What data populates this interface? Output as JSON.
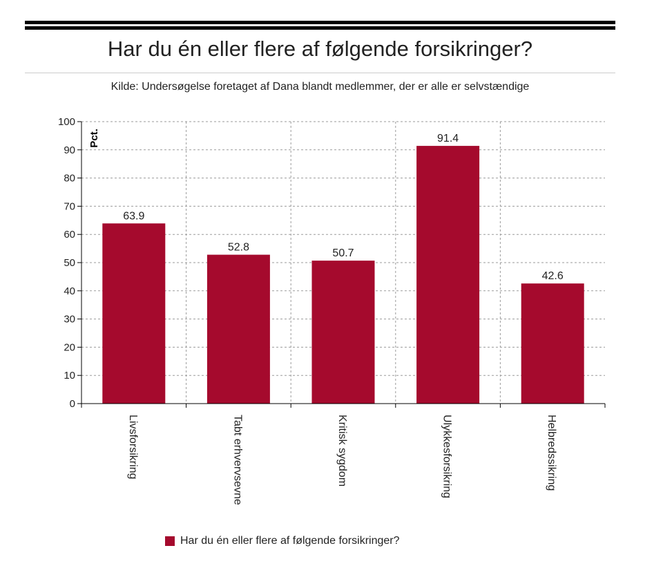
{
  "chart_data": {
    "type": "bar",
    "title": "Har du én eller flere af følgende forsikringer?",
    "subtitle": "Kilde: Undersøgelse foretaget af Dana blandt medlemmer, der er alle er selvstændige",
    "ylabel": "Pct.",
    "xlabel": "",
    "categories": [
      "Livsforsikring",
      "Tabt erhvervsevne",
      "Kritisk sygdom",
      "Ulykkesforsikring",
      "Helbredssikring"
    ],
    "series": [
      {
        "name": "Har du én eller flere af følgende forsikringer?",
        "values": [
          63.9,
          52.8,
          50.7,
          91.4,
          42.6
        ],
        "color": "#a50a2d"
      }
    ],
    "data_labels": [
      "63.9",
      "52.8",
      "50.7",
      "91.4",
      "42.6"
    ],
    "ylim": [
      0,
      100
    ],
    "yticks": [
      0,
      10,
      20,
      30,
      40,
      50,
      60,
      70,
      80,
      90,
      100
    ],
    "grid": true,
    "grid_style": "dashed",
    "legend_position": "bottom-left"
  }
}
